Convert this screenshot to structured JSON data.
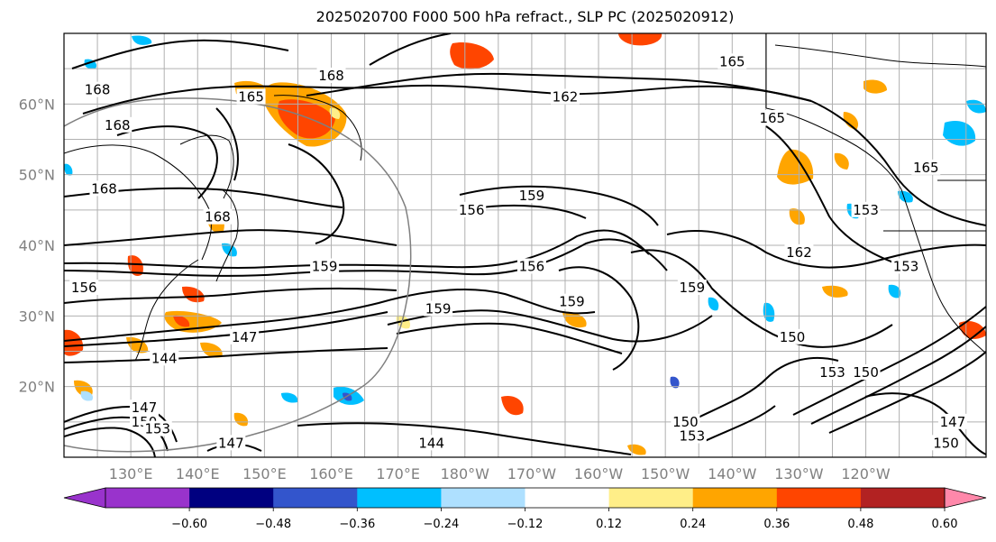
{
  "title": "2025020700 F000 500 hPa refract., SLP PC (2025020912)",
  "lat_labels": [
    {
      "text": "60°N",
      "lat": 60
    },
    {
      "text": "50°N",
      "lat": 50
    },
    {
      "text": "40°N",
      "lat": 40
    },
    {
      "text": "30°N",
      "lat": 30
    },
    {
      "text": "20°N",
      "lat": 20
    }
  ],
  "lon_labels": [
    "130°E",
    "140°E",
    "150°E",
    "160°E",
    "170°E",
    "180°W",
    "170°W",
    "160°W",
    "150°W",
    "140°W",
    "130°W",
    "120°W"
  ],
  "colorbar": {
    "colors": [
      "#9933cc",
      "#000080",
      "#3355cc",
      "#00bfff",
      "#aee0ff",
      "#ffffff",
      "#ffee88",
      "#ffa500",
      "#ff4500",
      "#b22222",
      "#ff88aa"
    ],
    "tick_labels": [
      "−0.60",
      "−0.48",
      "−0.36",
      "−0.24",
      "−0.12",
      "0.12",
      "0.24",
      "0.36",
      "0.48",
      "0.60"
    ]
  },
  "contour_labels": [
    {
      "text": "168",
      "lon": 125,
      "lat": 62
    },
    {
      "text": "168",
      "lon": 128,
      "lat": 57
    },
    {
      "text": "168",
      "lon": 160,
      "lat": 64
    },
    {
      "text": "165",
      "lon": 148,
      "lat": 61
    },
    {
      "text": "162",
      "lon": 195,
      "lat": 61
    },
    {
      "text": "165",
      "lon": 220,
      "lat": 66
    },
    {
      "text": "165",
      "lon": 226,
      "lat": 58
    },
    {
      "text": "165",
      "lon": 249,
      "lat": 51
    },
    {
      "text": "168",
      "lon": 126,
      "lat": 48
    },
    {
      "text": "168",
      "lon": 143,
      "lat": 44
    },
    {
      "text": "156",
      "lon": 181,
      "lat": 45
    },
    {
      "text": "159",
      "lon": 190,
      "lat": 47
    },
    {
      "text": "159",
      "lon": 159,
      "lat": 37
    },
    {
      "text": "156",
      "lon": 190,
      "lat": 37
    },
    {
      "text": "162",
      "lon": 230,
      "lat": 39
    },
    {
      "text": "153",
      "lon": 240,
      "lat": 45
    },
    {
      "text": "153",
      "lon": 246,
      "lat": 37
    },
    {
      "text": "156",
      "lon": 123,
      "lat": 34
    },
    {
      "text": "159",
      "lon": 176,
      "lat": 31
    },
    {
      "text": "159",
      "lon": 196,
      "lat": 32
    },
    {
      "text": "159",
      "lon": 214,
      "lat": 34
    },
    {
      "text": "150",
      "lon": 229,
      "lat": 27
    },
    {
      "text": "147",
      "lon": 147,
      "lat": 27
    },
    {
      "text": "144",
      "lon": 135,
      "lat": 24
    },
    {
      "text": "153",
      "lon": 235,
      "lat": 22
    },
    {
      "text": "150",
      "lon": 240,
      "lat": 22
    },
    {
      "text": "147",
      "lon": 132,
      "lat": 17
    },
    {
      "text": "150",
      "lon": 132,
      "lat": 15
    },
    {
      "text": "153",
      "lon": 134,
      "lat": 14
    },
    {
      "text": "147",
      "lon": 145,
      "lat": 12
    },
    {
      "text": "144",
      "lon": 175,
      "lat": 12
    },
    {
      "text": "150",
      "lon": 213,
      "lat": 15
    },
    {
      "text": "153",
      "lon": 214,
      "lat": 13
    },
    {
      "text": "147",
      "lon": 253,
      "lat": 15
    },
    {
      "text": "150",
      "lon": 252,
      "lat": 12
    }
  ]
}
